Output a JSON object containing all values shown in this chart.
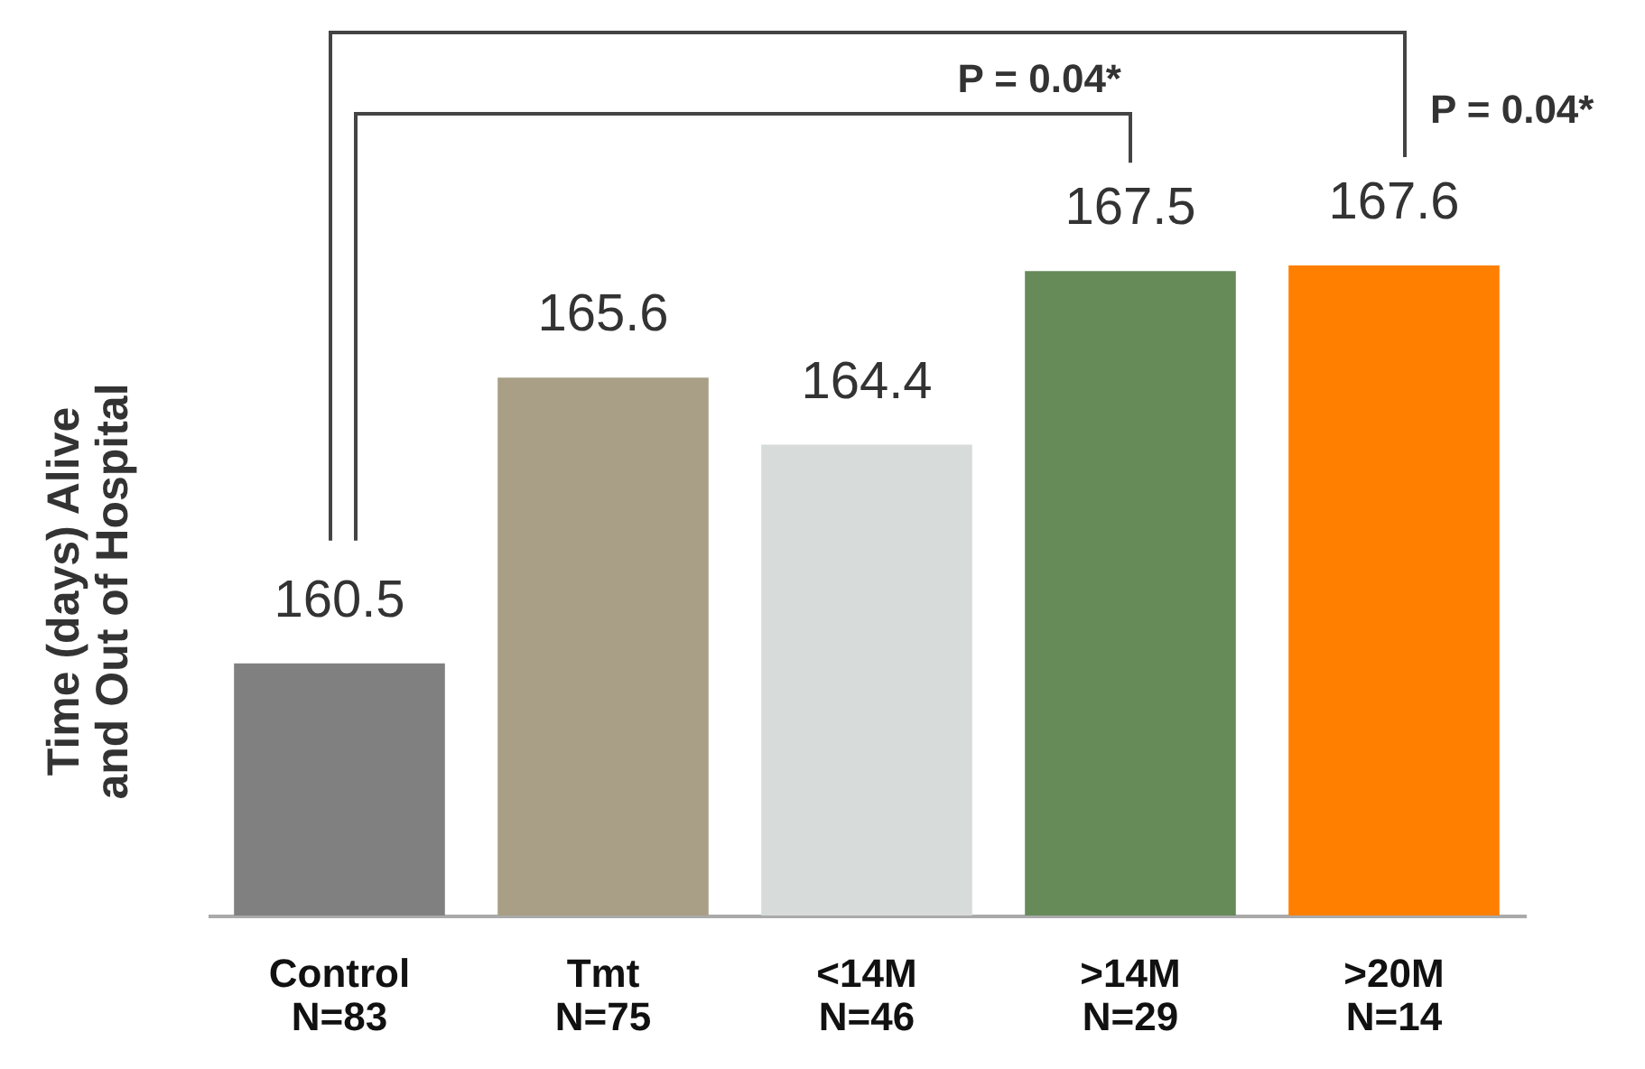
{
  "chart_data": {
    "type": "bar",
    "ylabel": "Time (days) Alive\nand Out of Hospital",
    "categories": [
      "Control\nN=83",
      "Tmt\nN=75",
      "<14M\nN=46",
      ">14M\nN=29",
      ">20M\nN=14"
    ],
    "values": [
      160.5,
      165.6,
      164.4,
      167.5,
      167.6
    ],
    "colors": [
      "#808080",
      "#a89f86",
      "#d7dbd9",
      "#668a58",
      "#ff7f00"
    ],
    "ylim": [
      156,
      167.6
    ],
    "data_labels": true,
    "annotations": [
      "P = 0.04*",
      "P = 0.04*"
    ]
  }
}
